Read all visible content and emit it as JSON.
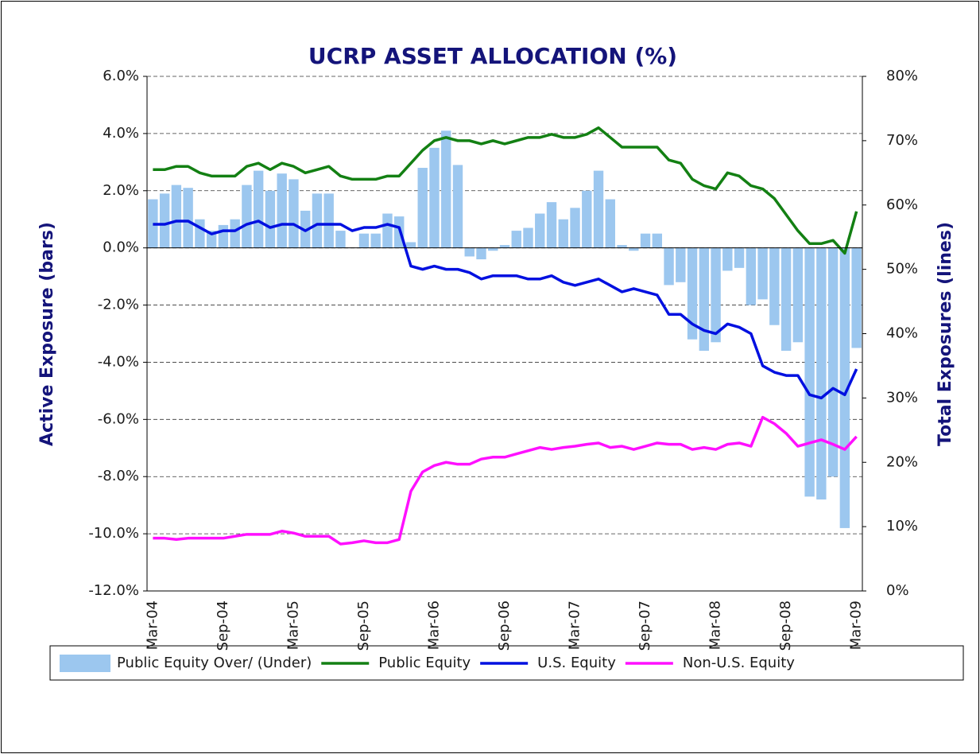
{
  "chart_data": {
    "type": "bar",
    "title": "UCRP ASSET ALLOCATION (%)",
    "y_label": "Active Exposure (bars)",
    "y2_label": "Total Exposures (lines)",
    "categories": [
      "Mar-04",
      null,
      null,
      null,
      null,
      null,
      "Sep-04",
      null,
      null,
      null,
      null,
      null,
      "Mar-05",
      null,
      null,
      null,
      null,
      null,
      "Sep-05",
      null,
      null,
      null,
      null,
      null,
      "Mar-06",
      null,
      null,
      null,
      null,
      null,
      "Sep-06",
      null,
      null,
      null,
      null,
      null,
      "Mar-07",
      null,
      null,
      null,
      null,
      null,
      "Sep-07",
      null,
      null,
      null,
      null,
      null,
      "Mar-08",
      null,
      null,
      null,
      null,
      null,
      "Sep-08",
      null,
      null,
      null,
      null,
      null,
      "Mar-09"
    ],
    "ylim": [
      -12,
      6
    ],
    "yticks": [
      {
        "value": -12,
        "label": "-12.0%"
      },
      {
        "value": -10,
        "label": "-10.0%"
      },
      {
        "value": -8,
        "label": "-8.0%"
      },
      {
        "value": -6,
        "label": "-6.0%"
      },
      {
        "value": -4,
        "label": "-4.0%"
      },
      {
        "value": -2,
        "label": "-2.0%"
      },
      {
        "value": 0,
        "label": "0.0%"
      },
      {
        "value": 2,
        "label": "2.0%"
      },
      {
        "value": 4,
        "label": "4.0%"
      },
      {
        "value": 6,
        "label": "6.0%"
      }
    ],
    "y2lim": [
      0,
      80
    ],
    "y2ticks": [
      {
        "value": 0,
        "label": "0%"
      },
      {
        "value": 10,
        "label": "10%"
      },
      {
        "value": 20,
        "label": "20%"
      },
      {
        "value": 30,
        "label": "30%"
      },
      {
        "value": 40,
        "label": "40%"
      },
      {
        "value": 50,
        "label": "50%"
      },
      {
        "value": 60,
        "label": "60%"
      },
      {
        "value": 70,
        "label": "70%"
      },
      {
        "value": 80,
        "label": "80%"
      }
    ],
    "grid": true,
    "legend": "bottom",
    "series": [
      {
        "name": "Public Equity Over/ (Under)",
        "type": "bar",
        "axis": "y",
        "color": "#9cc7ef",
        "values": [
          1.7,
          1.9,
          2.2,
          2.1,
          1.0,
          0.6,
          0.8,
          1.0,
          2.2,
          2.7,
          2.0,
          2.6,
          2.4,
          1.3,
          1.9,
          1.9,
          0.6,
          0.0,
          0.5,
          0.5,
          1.2,
          1.1,
          0.2,
          2.8,
          3.5,
          4.1,
          2.9,
          -0.3,
          -0.4,
          -0.1,
          0.1,
          0.6,
          0.7,
          1.2,
          1.6,
          1.0,
          1.4,
          2.0,
          2.7,
          1.7,
          0.1,
          -0.1,
          0.5,
          0.5,
          -1.3,
          -1.2,
          -3.2,
          -3.6,
          -3.3,
          -0.8,
          -0.7,
          -2.0,
          -1.8,
          -2.7,
          -3.6,
          -3.3,
          -8.7,
          -8.8,
          -8.0,
          -9.8,
          -3.5
        ]
      },
      {
        "name": "Public Equity",
        "type": "line",
        "axis": "y2",
        "color": "#138013",
        "values": [
          65.5,
          65.5,
          66,
          66,
          65,
          64.5,
          64.5,
          64.5,
          66,
          66.5,
          65.5,
          66.5,
          66,
          65,
          65.5,
          66,
          64.5,
          64,
          64,
          64,
          64.5,
          64.5,
          66.5,
          68.5,
          70,
          70.5,
          70,
          70,
          69.5,
          70,
          69.5,
          70,
          70.5,
          70.5,
          71,
          70.5,
          70.5,
          71,
          72,
          70.5,
          69,
          69,
          69,
          69,
          67,
          66.5,
          64,
          63,
          62.5,
          65,
          64.5,
          63,
          62.5,
          61,
          58.5,
          56,
          54,
          54,
          54.5,
          52.5,
          59
        ]
      },
      {
        "name": "U.S. Equity",
        "type": "line",
        "axis": "y2",
        "color": "#0010e0",
        "values": [
          57,
          57,
          57.5,
          57.5,
          56.5,
          55.5,
          56,
          56,
          57,
          57.5,
          56.5,
          57,
          57,
          56,
          57,
          57,
          57,
          56,
          56.5,
          56.5,
          57,
          56.5,
          50.5,
          50,
          50.5,
          50,
          50,
          49.5,
          48.5,
          49,
          49,
          49,
          48.5,
          48.5,
          49,
          48,
          47.5,
          48,
          48.5,
          47.5,
          46.5,
          47,
          46.5,
          46,
          43,
          43,
          41.5,
          40.5,
          40,
          41.5,
          41,
          40,
          35,
          34,
          33.5,
          33.5,
          30.5,
          30,
          31.5,
          30.5,
          34.5
        ]
      },
      {
        "name": "Non-U.S. Equity",
        "type": "line",
        "axis": "y2",
        "color": "#ff10ff",
        "values": [
          8.2,
          8.2,
          8,
          8.2,
          8.2,
          8.2,
          8.2,
          8.5,
          8.8,
          8.8,
          8.8,
          9.3,
          9,
          8.5,
          8.5,
          8.5,
          7.3,
          7.5,
          7.8,
          7.5,
          7.5,
          8,
          15.5,
          18.5,
          19.5,
          20,
          19.7,
          19.7,
          20.5,
          20.8,
          20.8,
          21.3,
          21.8,
          22.3,
          22,
          22.3,
          22.5,
          22.8,
          23,
          22.3,
          22.5,
          22,
          22.5,
          23,
          22.8,
          22.8,
          22,
          22.3,
          22,
          22.8,
          23,
          22.5,
          27,
          26,
          24.5,
          22.5,
          23,
          23.5,
          22.8,
          22,
          24
        ]
      }
    ]
  }
}
